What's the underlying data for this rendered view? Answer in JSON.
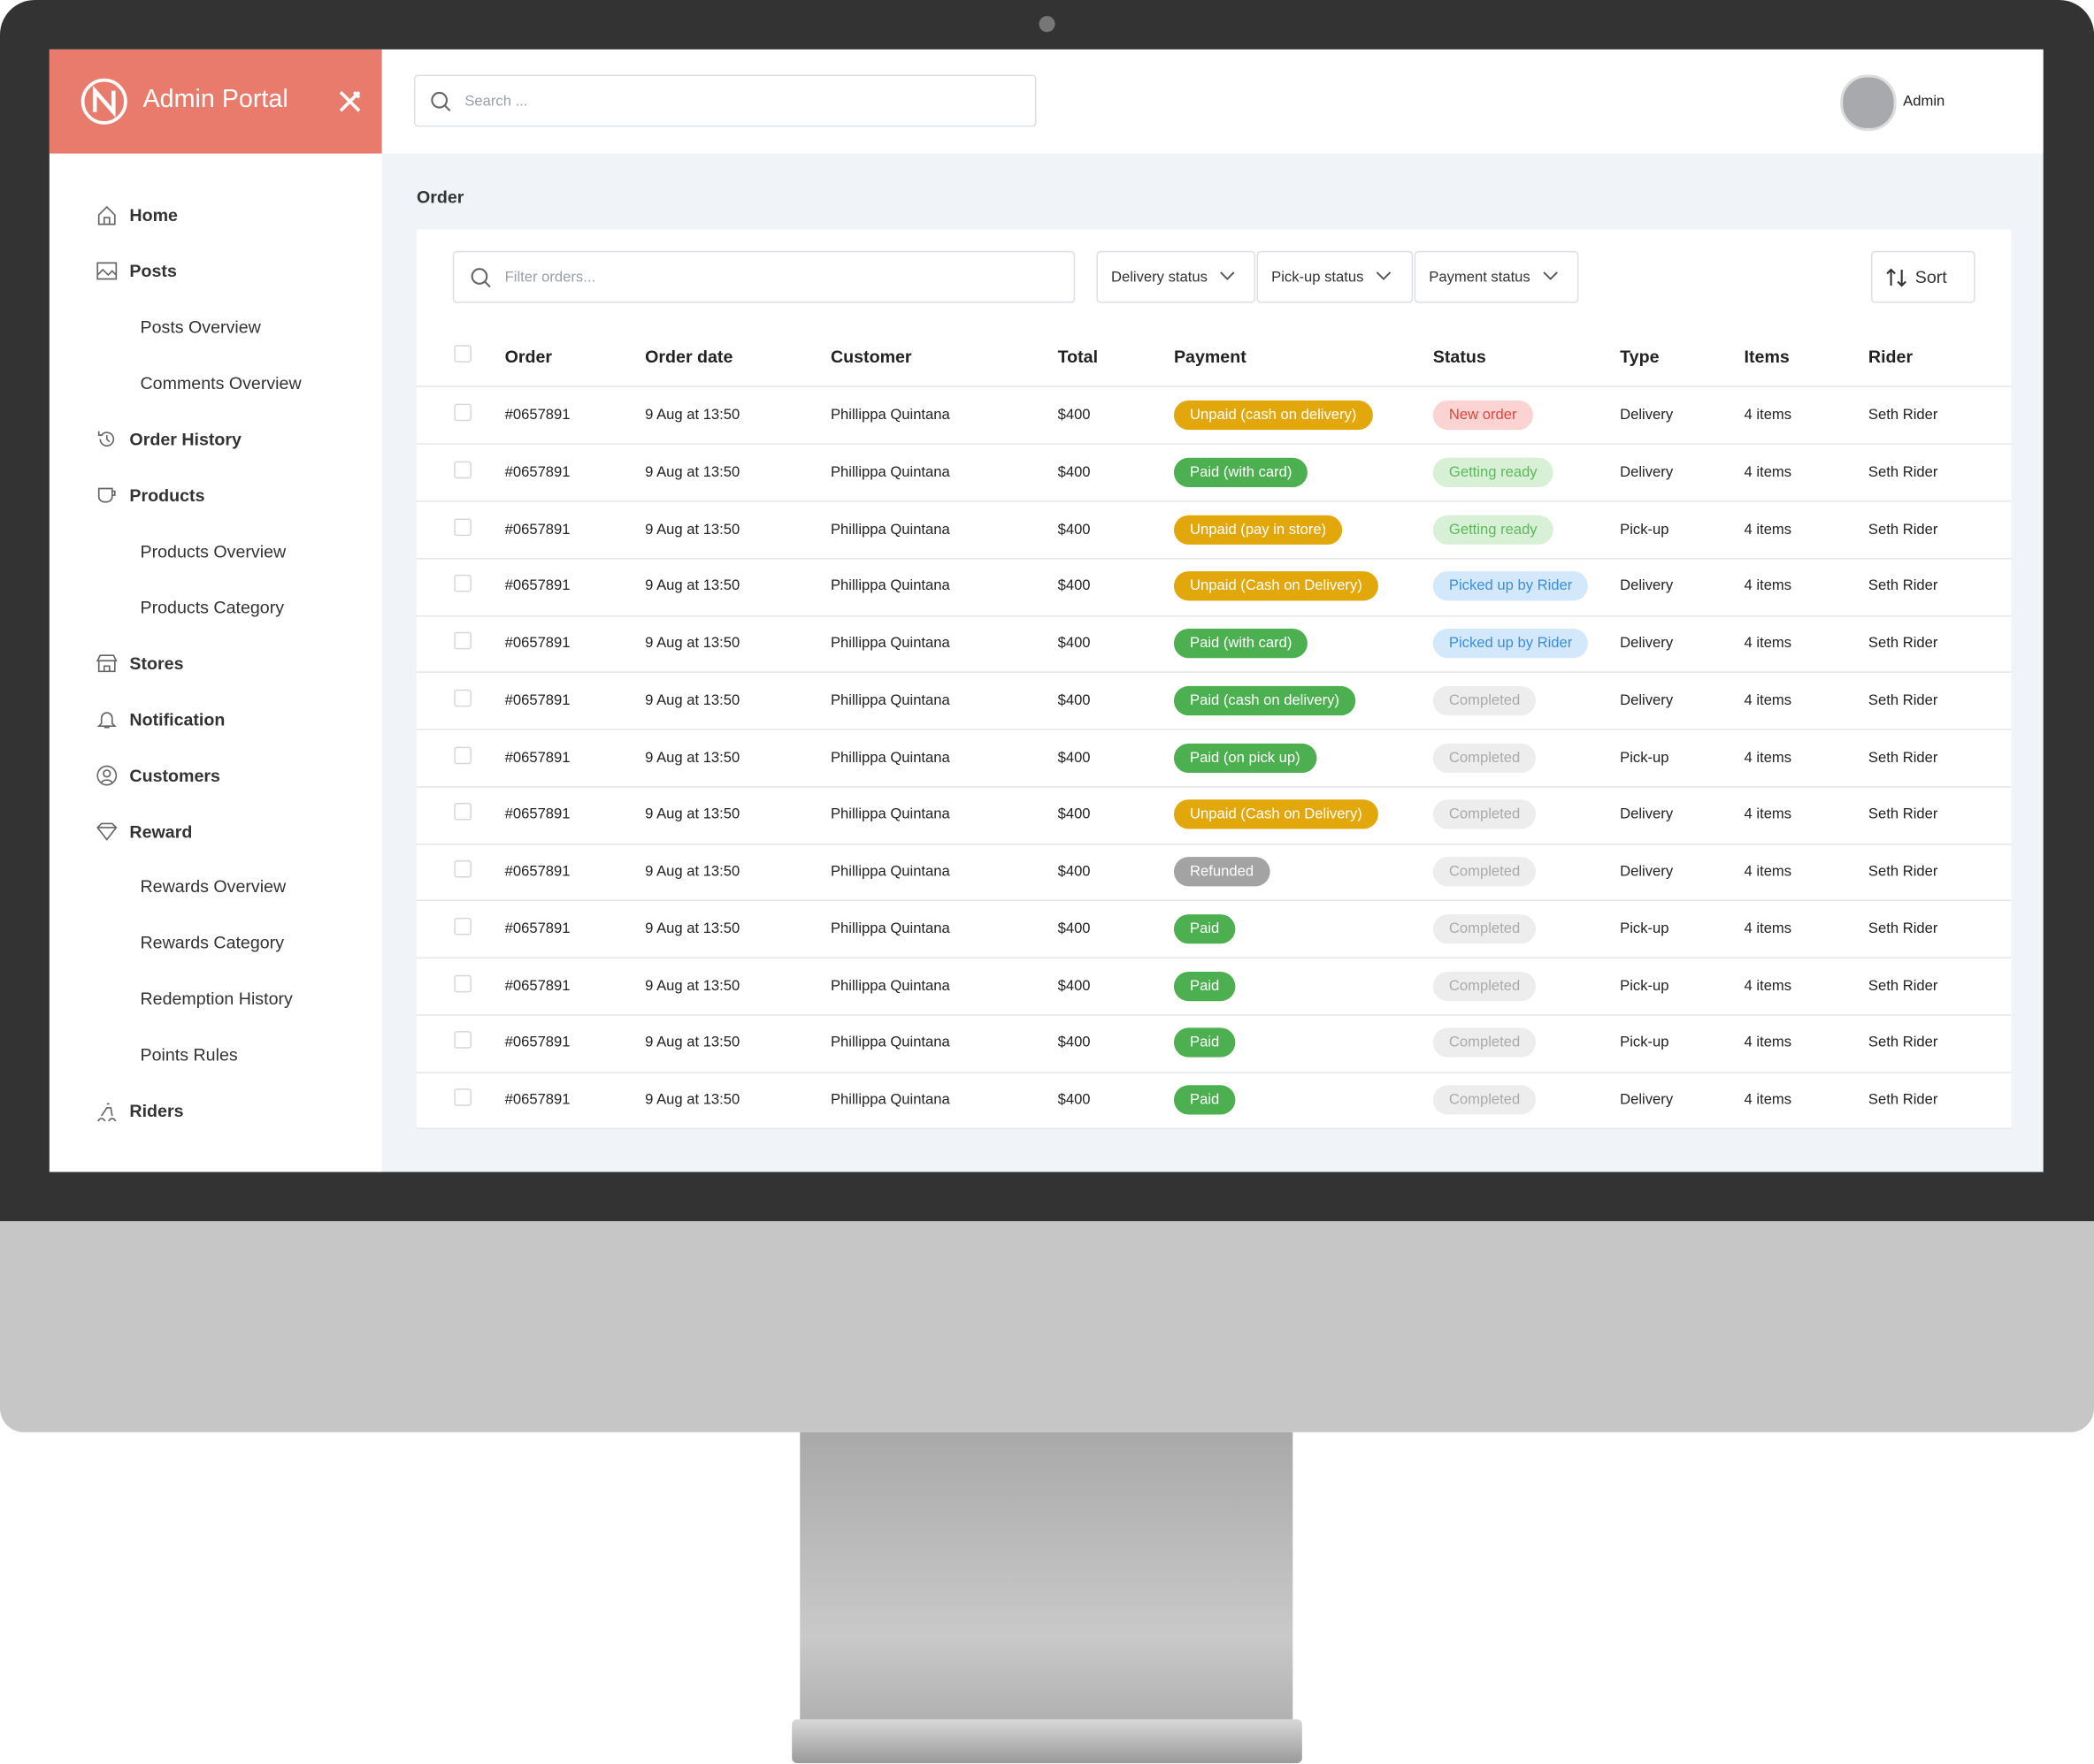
{
  "sidebar": {
    "brand": "Admin Portal",
    "nav": [
      "Home",
      "Posts",
      "Posts Overview",
      "Comments Overview",
      "Order History",
      "Products",
      "Products Overview",
      "Products Category",
      "Stores",
      "Notification",
      "Customers",
      "Reward",
      "Rewards Overview",
      "Rewards Category",
      "Redemption History",
      "Points Rules",
      "Riders"
    ]
  },
  "header": {
    "search_placeholder": "Search ...",
    "user": "Admin"
  },
  "page_title": "Order",
  "toolbar": {
    "filter_placeholder": "Filter orders...",
    "filters": [
      "Delivery status",
      "Pick-up status",
      "Payment status"
    ],
    "sort": "Sort"
  },
  "table": {
    "columns": [
      "Order",
      "Order date",
      "Customer",
      "Total",
      "Payment",
      "Status",
      "Type",
      "Items",
      "Rider"
    ],
    "rows": [
      [
        "#0657891",
        "9 Aug at 13:50",
        "Phillippa Quintana",
        "$400",
        "Unpaid (cash on delivery)",
        "New order",
        "Delivery",
        "4 items",
        "Seth Rider"
      ],
      [
        "#0657891",
        "9 Aug at 13:50",
        "Phillippa Quintana",
        "$400",
        "Paid (with card)",
        "Getting ready",
        "Delivery",
        "4 items",
        "Seth Rider"
      ],
      [
        "#0657891",
        "9 Aug at 13:50",
        "Phillippa Quintana",
        "$400",
        "Unpaid (pay in store)",
        "Getting ready",
        "Pick-up",
        "4 items",
        "Seth Rider"
      ],
      [
        "#0657891",
        "9 Aug at 13:50",
        "Phillippa Quintana",
        "$400",
        "Unpaid (Cash on Delivery)",
        "Picked up by Rider",
        "Delivery",
        "4 items",
        "Seth Rider"
      ],
      [
        "#0657891",
        "9 Aug at 13:50",
        "Phillippa Quintana",
        "$400",
        "Paid (with card)",
        "Picked up by Rider",
        "Delivery",
        "4 items",
        "Seth Rider"
      ],
      [
        "#0657891",
        "9 Aug at 13:50",
        "Phillippa Quintana",
        "$400",
        "Paid (cash on delivery)",
        "Completed",
        "Delivery",
        "4 items",
        "Seth Rider"
      ],
      [
        "#0657891",
        "9 Aug at 13:50",
        "Phillippa Quintana",
        "$400",
        "Paid (on pick up)",
        "Completed",
        "Pick-up",
        "4 items",
        "Seth Rider"
      ],
      [
        "#0657891",
        "9 Aug at 13:50",
        "Phillippa Quintana",
        "$400",
        "Unpaid (Cash on Delivery)",
        "Completed",
        "Delivery",
        "4 items",
        "Seth Rider"
      ],
      [
        "#0657891",
        "9 Aug at 13:50",
        "Phillippa Quintana",
        "$400",
        "Refunded",
        "Completed",
        "Delivery",
        "4 items",
        "Seth Rider"
      ],
      [
        "#0657891",
        "9 Aug at 13:50",
        "Phillippa Quintana",
        "$400",
        "Paid",
        "Completed",
        "Pick-up",
        "4 items",
        "Seth Rider"
      ],
      [
        "#0657891",
        "9 Aug at 13:50",
        "Phillippa Quintana",
        "$400",
        "Paid",
        "Completed",
        "Pick-up",
        "4 items",
        "Seth Rider"
      ],
      [
        "#0657891",
        "9 Aug at 13:50",
        "Phillippa Quintana",
        "$400",
        "Paid",
        "Completed",
        "Pick-up",
        "4 items",
        "Seth Rider"
      ],
      [
        "#0657891",
        "9 Aug at 13:50",
        "Phillippa Quintana",
        "$400",
        "Paid",
        "Completed",
        "Delivery",
        "4 items",
        "Seth Rider"
      ]
    ]
  }
}
